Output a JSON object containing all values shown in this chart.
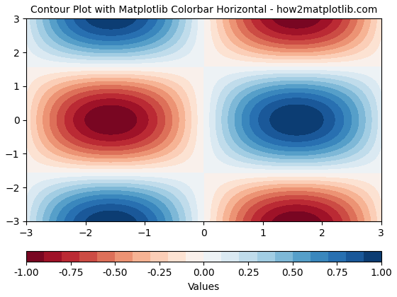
{
  "title": "Contour Plot with Matplotlib Colorbar Horizontal - how2matplotlib.com",
  "colorbar_label": "Values",
  "colormap": "RdBu",
  "x_range": [
    -3,
    3
  ],
  "y_range": [
    -3,
    3
  ],
  "grid_points": 300,
  "colorbar_ticks": [
    -1.0,
    -0.75,
    -0.5,
    -0.25,
    0.0,
    0.25,
    0.5,
    0.75,
    1.0
  ],
  "vmin": -1.0,
  "vmax": 1.0,
  "levels": 20,
  "title_fontsize": 10,
  "figsize": [
    5.6,
    4.2
  ],
  "dpi": 100
}
